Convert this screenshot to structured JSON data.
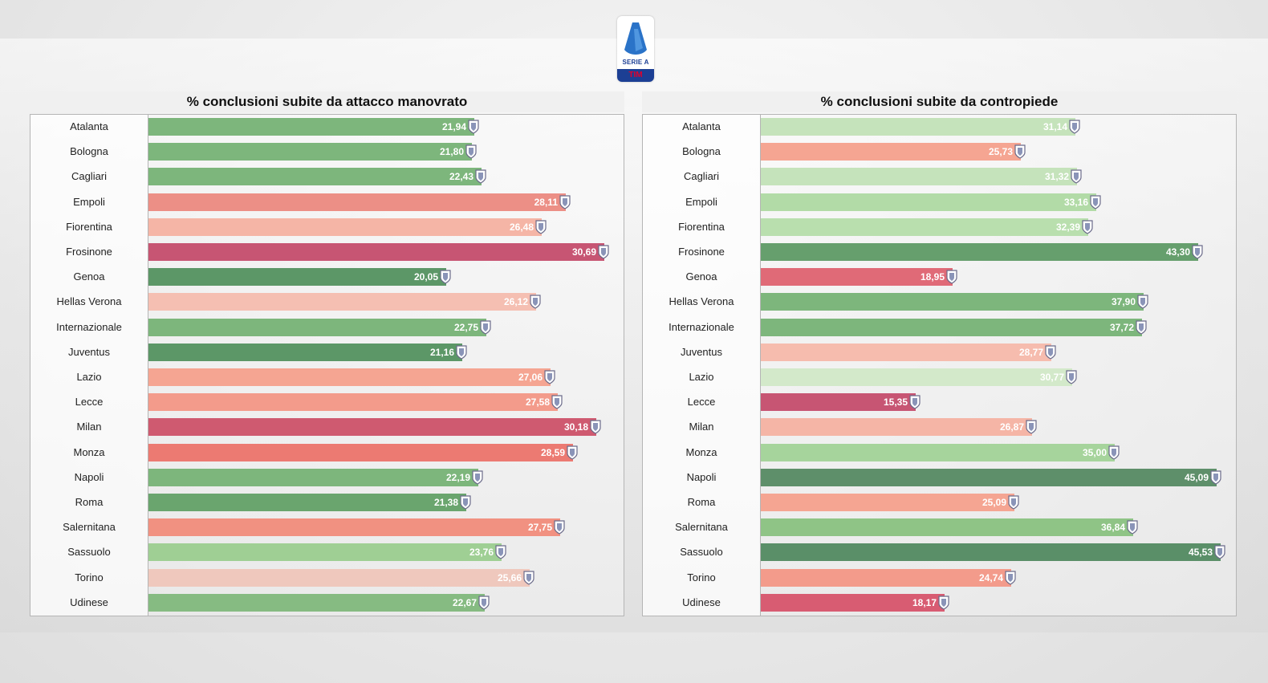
{
  "header": {
    "logo_text": "SERIE A",
    "logo_sponsor": "TIM"
  },
  "colors": {
    "dark_green": "#5c9767",
    "green": "#7db67c",
    "light_green": "#a6d49c",
    "pale_green": "#c5e3bb",
    "pale_red": "#f3c5b8",
    "salmon": "#f5a592",
    "red": "#ec7a72",
    "dark_red": "#c75573"
  },
  "chart_data": [
    {
      "type": "bar",
      "orientation": "horizontal",
      "title": "% conclusioni subite da attacco manovrato",
      "categories": [
        "Atalanta",
        "Bologna",
        "Cagliari",
        "Empoli",
        "Fiorentina",
        "Frosinone",
        "Genoa",
        "Hellas Verona",
        "Internazionale",
        "Juventus",
        "Lazio",
        "Lecce",
        "Milan",
        "Monza",
        "Napoli",
        "Roma",
        "Salernitana",
        "Sassuolo",
        "Torino",
        "Udinese"
      ],
      "values": [
        21.94,
        21.8,
        22.43,
        28.11,
        26.48,
        30.69,
        20.05,
        26.12,
        22.75,
        21.16,
        27.06,
        27.58,
        30.18,
        28.59,
        22.19,
        21.38,
        27.75,
        23.76,
        25.66,
        22.67
      ],
      "labels": [
        "21,94",
        "21,80",
        "22,43",
        "28,11",
        "26,48",
        "30,69",
        "20,05",
        "26,12",
        "22,75",
        "21,16",
        "27,06",
        "27,58",
        "30,18",
        "28,59",
        "22,19",
        "21,38",
        "27,75",
        "23,76",
        "25,66",
        "22,67"
      ],
      "bar_colors": [
        "#7db67c",
        "#7db67c",
        "#7db67c",
        "#ec8f86",
        "#f5b5a6",
        "#c75573",
        "#5c9767",
        "#f5bfb2",
        "#7db67c",
        "#5c9767",
        "#f5a592",
        "#f39b8b",
        "#cf5a70",
        "#ec7a72",
        "#7db67c",
        "#6aa56e",
        "#f19181",
        "#9fcf94",
        "#efc8bd",
        "#86bb82"
      ],
      "xlim": [
        0,
        32
      ]
    },
    {
      "type": "bar",
      "orientation": "horizontal",
      "title": "% conclusioni subite da contropiede",
      "categories": [
        "Atalanta",
        "Bologna",
        "Cagliari",
        "Empoli",
        "Fiorentina",
        "Frosinone",
        "Genoa",
        "Hellas Verona",
        "Internazionale",
        "Juventus",
        "Lazio",
        "Lecce",
        "Milan",
        "Monza",
        "Napoli",
        "Roma",
        "Salernitana",
        "Sassuolo",
        "Torino",
        "Udinese"
      ],
      "values": [
        31.14,
        25.73,
        31.32,
        33.16,
        32.39,
        43.3,
        18.95,
        37.9,
        37.72,
        28.77,
        30.77,
        15.35,
        26.87,
        35.0,
        45.09,
        25.09,
        36.84,
        45.53,
        24.74,
        18.17
      ],
      "labels": [
        "31,14",
        "25,73",
        "31,32",
        "33,16",
        "32,39",
        "43,30",
        "18,95",
        "37,90",
        "37,72",
        "28,77",
        "30,77",
        "15,35",
        "26,87",
        "35,00",
        "45,09",
        "25,09",
        "36,84",
        "45,53",
        "24,74",
        "18,17"
      ],
      "bar_colors": [
        "#c5e3bb",
        "#f5a592",
        "#c5e3bb",
        "#b2dba7",
        "#b9dfae",
        "#669f6d",
        "#e06a77",
        "#7db67c",
        "#7db67c",
        "#f6bcae",
        "#d3e9ca",
        "#c75573",
        "#f5b5a6",
        "#a6d49c",
        "#5e8f6a",
        "#f5a592",
        "#8fc486",
        "#5a8f68",
        "#f39b8b",
        "#d85c72"
      ],
      "xlim": [
        0,
        47
      ]
    }
  ]
}
